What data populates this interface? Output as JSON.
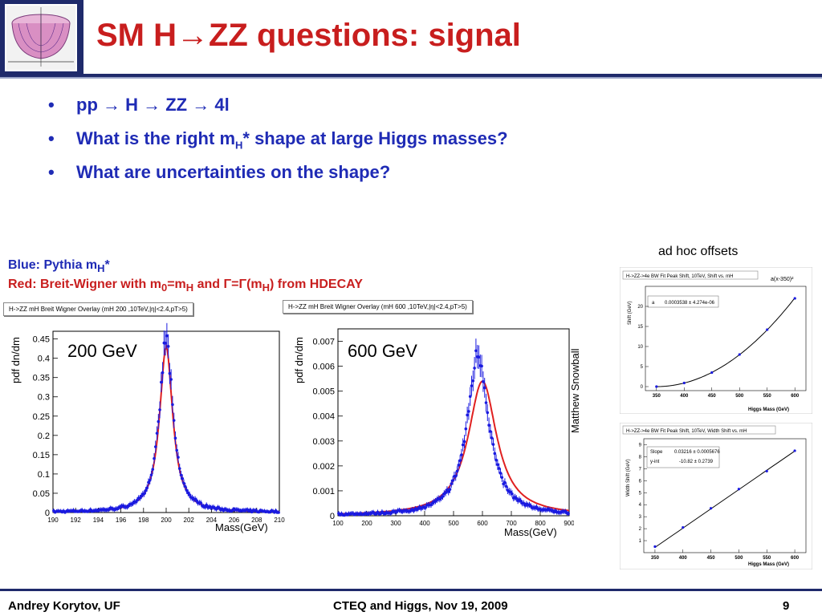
{
  "header": {
    "title_pre": "SM H",
    "title_arrow": "→",
    "title_post": "ZZ questions: signal",
    "logo_icon": "higgs-potential-icon"
  },
  "bullets": [
    {
      "text_html": "pp <span>→</span> H <span>→</span> ZZ <span>→</span> 4l"
    },
    {
      "text_html": "What is the right m<sub>H</sub>* shape at large Higgs masses?"
    },
    {
      "text_html": "What are uncertainties on the shape?"
    }
  ],
  "legend": {
    "blue_html": "Blue: Pythia m<sub>H</sub>*",
    "red_html": "Red: Breit-Wigner with m<sub>0</sub>=m<sub>H</sub> and Γ=Γ(m<sub>H</sub>) from HDECAY"
  },
  "adhoc_label": "ad hoc offsets",
  "watermark": "Matthew Snowball",
  "plot200": {
    "title": "H->ZZ mH Breit Wigner Overlay (mH 200 ,10TeV,|η|<2.4,pT>5)",
    "big_label": "200 GeV",
    "ylabel": "pdf dn/dm",
    "xlabel": "Mass(GeV)"
  },
  "plot600": {
    "title": "H->ZZ mH Breit Wigner Overlay (mH 600 ,10TeV,|η|<2.4,pT>5)",
    "big_label": "600 GeV",
    "ylabel": "pdf dn/dm",
    "xlabel": "Mass(GeV)"
  },
  "shift_plot": {
    "title": "H->ZZ->4e BW Fit Peak Shift, 10TeV, Shift vs. mH",
    "formula": "a(x-350)²",
    "fit_param_label": "a",
    "fit_param_value": "0.0003538 ± 4.274e-06",
    "ylabel": "Shift (GeV)",
    "xlabel": "Higgs Mass (GeV)"
  },
  "width_plot": {
    "title": "H->ZZ->4e BW Fit Peak Shift, 10TeV, Width Shift vs. mH",
    "slope_label": "Slope",
    "slope_value": "0.03216 ± 0.0005676",
    "yint_label": "y-int",
    "yint_value": "-10.82 ± 0.2739",
    "ylabel": "Width Shift (GeV)",
    "xlabel": "Higgs Mass (GeV)"
  },
  "footer": {
    "author": "Andrey Korytov, UF",
    "event": "CTEQ and Higgs, Nov 19, 2009",
    "page": "9"
  },
  "colors": {
    "title_red": "#c81e1e",
    "bullet_blue": "#1f2bb5",
    "header_navy": "#1f2a6b",
    "fit_red": "#e02020",
    "data_blue": "#1a1ae0"
  },
  "chart_data": [
    {
      "type": "line",
      "xlabel": "Mass(GeV)",
      "ylabel": "pdf dn/dm",
      "xlim": [
        190,
        210
      ],
      "ylim": [
        0,
        0.47
      ],
      "x_ticks": [
        190,
        192,
        194,
        196,
        198,
        200,
        202,
        204,
        206,
        208,
        210
      ],
      "y_ticks": [
        0,
        0.05,
        0.1,
        0.15,
        0.2,
        0.25,
        0.3,
        0.35,
        0.4,
        0.45
      ],
      "x_tick_labels": [
        "190",
        "192",
        "194",
        "196",
        "198",
        "200",
        "202",
        "204",
        "206",
        "208",
        "210"
      ],
      "y_tick_labels": [
        "0",
        "0.05",
        "0.1",
        "0.15",
        "0.2",
        "0.25",
        "0.3",
        "0.35",
        "0.4",
        "0.45"
      ],
      "series": [
        {
          "name": "Blue: Pythia",
          "peak_x": 200,
          "peak_y": 0.45,
          "fwhm": 1.4
        },
        {
          "name": "Red: Breit-Wigner",
          "peak_x": 200,
          "peak_y": 0.43,
          "fwhm": 1.4
        }
      ]
    },
    {
      "type": "line",
      "xlabel": "Mass(GeV)",
      "ylabel": "pdf dn/dm",
      "xlim": [
        100,
        900
      ],
      "ylim": [
        0,
        0.0075
      ],
      "x_ticks": [
        100,
        200,
        300,
        400,
        500,
        600,
        700,
        800,
        900
      ],
      "y_ticks": [
        0,
        0.001,
        0.002,
        0.003,
        0.004,
        0.005,
        0.006,
        0.007
      ],
      "x_tick_labels": [
        "100",
        "200",
        "300",
        "400",
        "500",
        "600",
        "700",
        "800",
        "900"
      ],
      "y_tick_labels": [
        "0",
        "0.001",
        "0.002",
        "0.003",
        "0.004",
        "0.005",
        "0.006",
        "0.007"
      ],
      "series": [
        {
          "name": "Blue: Pythia",
          "peak_x": 585,
          "peak_y": 0.0065,
          "fwhm": 90
        },
        {
          "name": "Red: Breit-Wigner",
          "peak_x": 600,
          "peak_y": 0.0054,
          "fwhm": 120
        }
      ]
    },
    {
      "type": "scatter",
      "title": "H->ZZ->4e BW Fit Peak Shift, 10TeV, Shift vs. mH",
      "xlabel": "Higgs Mass (GeV)",
      "ylabel": "Shift (GeV)",
      "xlim": [
        330,
        620
      ],
      "ylim": [
        -1,
        25
      ],
      "x_ticks": [
        350,
        400,
        450,
        500,
        550,
        600
      ],
      "y_ticks": [
        0,
        5,
        10,
        15,
        20
      ],
      "x": [
        350,
        400,
        450,
        500,
        550,
        600
      ],
      "y": [
        0,
        0.9,
        3.5,
        8.0,
        14.2,
        22.0
      ]
    },
    {
      "type": "scatter",
      "title": "H->ZZ->4e BW Fit Peak Shift, 10TeV, Width Shift vs. mH",
      "xlabel": "Higgs Mass (GeV)",
      "ylabel": "Width Shift (GeV)",
      "xlim": [
        330,
        620
      ],
      "ylim": [
        0,
        9.5
      ],
      "x_ticks": [
        350,
        400,
        450,
        500,
        550,
        600
      ],
      "y_ticks": [
        1,
        2,
        3,
        4,
        5,
        6,
        7,
        8,
        9
      ],
      "x": [
        350,
        400,
        450,
        500,
        550,
        600
      ],
      "y": [
        0.5,
        2.1,
        3.7,
        5.3,
        6.8,
        8.5
      ]
    }
  ]
}
